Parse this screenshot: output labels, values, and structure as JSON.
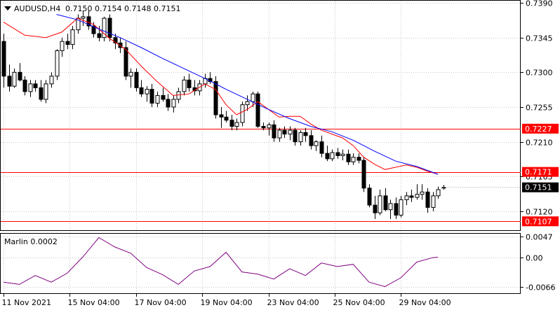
{
  "header": {
    "symbol_label": "AUDUSD,H4",
    "ohlc_label": "0.7150 0.7154 0.7148 0.7151"
  },
  "colors": {
    "background": "#ffffff",
    "candle": "#000000",
    "ma_fast": "#ff0000",
    "ma_slow": "#0000ff",
    "level": "#ff0000",
    "oscillator": "#800080",
    "tag_bg": "#ff0000",
    "price_bg": "#000000",
    "grid": "#c8c8c8"
  },
  "chart_data": [
    {
      "type": "candlestick",
      "symbol": "AUDUSD",
      "timeframe": "H4",
      "ylim": [
        0.71,
        0.739
      ],
      "y_ticks": [
        "0.7390",
        "0.7345",
        "0.7300",
        "0.7255",
        "0.7210",
        "0.7165",
        "0.7120"
      ],
      "x_ticks": [
        "11 Nov 2021",
        "15 Nov 04:00",
        "17 Nov 04:00",
        "19 Nov 04:00",
        "23 Nov 04:00",
        "25 Nov 04:00",
        "29 Nov 04:00"
      ],
      "current_price": "0.7151",
      "levels": [
        {
          "value": 0.7227,
          "label": "0.7227"
        },
        {
          "value": 0.7171,
          "label": "0.7171"
        },
        {
          "value": 0.7107,
          "label": "0.7107"
        }
      ],
      "candles": [
        [
          0.734,
          0.735,
          0.728,
          0.7295
        ],
        [
          0.7295,
          0.731,
          0.7275,
          0.7282
        ],
        [
          0.7282,
          0.7305,
          0.728,
          0.73
        ],
        [
          0.73,
          0.7312,
          0.7288,
          0.729
        ],
        [
          0.729,
          0.7295,
          0.727,
          0.7275
        ],
        [
          0.7275,
          0.729,
          0.7268,
          0.7285
        ],
        [
          0.7285,
          0.729,
          0.7275,
          0.728
        ],
        [
          0.728,
          0.729,
          0.7262,
          0.7265
        ],
        [
          0.7265,
          0.729,
          0.726,
          0.7285
        ],
        [
          0.7285,
          0.73,
          0.728,
          0.7295
        ],
        [
          0.7295,
          0.733,
          0.729,
          0.7328
        ],
        [
          0.7328,
          0.7345,
          0.732,
          0.734
        ],
        [
          0.734,
          0.735,
          0.733,
          0.7336
        ],
        [
          0.7336,
          0.736,
          0.733,
          0.7355
        ],
        [
          0.7355,
          0.7375,
          0.735,
          0.737
        ],
        [
          0.737,
          0.738,
          0.736,
          0.7372
        ],
        [
          0.7372,
          0.738,
          0.7355,
          0.736
        ],
        [
          0.736,
          0.7365,
          0.7345,
          0.735
        ],
        [
          0.735,
          0.736,
          0.734,
          0.7345
        ],
        [
          0.7345,
          0.7372,
          0.734,
          0.737
        ],
        [
          0.737,
          0.7375,
          0.734,
          0.7345
        ],
        [
          0.7345,
          0.735,
          0.733,
          0.7338
        ],
        [
          0.7338,
          0.7345,
          0.7325,
          0.7332
        ],
        [
          0.7332,
          0.734,
          0.729,
          0.7295
        ],
        [
          0.7295,
          0.7305,
          0.728,
          0.73
        ],
        [
          0.73,
          0.7305,
          0.7275,
          0.728
        ],
        [
          0.728,
          0.729,
          0.7268,
          0.7272
        ],
        [
          0.7272,
          0.7282,
          0.7262,
          0.7278
        ],
        [
          0.7278,
          0.7285,
          0.7255,
          0.726
        ],
        [
          0.726,
          0.7275,
          0.7255,
          0.727
        ],
        [
          0.727,
          0.728,
          0.7262,
          0.7265
        ],
        [
          0.7265,
          0.7272,
          0.725,
          0.7255
        ],
        [
          0.7255,
          0.727,
          0.7248,
          0.7265
        ],
        [
          0.7265,
          0.728,
          0.726,
          0.7275
        ],
        [
          0.7275,
          0.7295,
          0.727,
          0.729
        ],
        [
          0.729,
          0.7298,
          0.7275,
          0.728
        ],
        [
          0.728,
          0.729,
          0.727,
          0.7276
        ],
        [
          0.7276,
          0.729,
          0.727,
          0.7285
        ],
        [
          0.7285,
          0.7298,
          0.728,
          0.7292
        ],
        [
          0.7292,
          0.73,
          0.7285,
          0.7288
        ],
        [
          0.7288,
          0.7295,
          0.724,
          0.7245
        ],
        [
          0.7245,
          0.7255,
          0.7228,
          0.7242
        ],
        [
          0.7242,
          0.725,
          0.7235,
          0.7238
        ],
        [
          0.7238,
          0.7245,
          0.7225,
          0.723
        ],
        [
          0.723,
          0.724,
          0.7225,
          0.7235
        ],
        [
          0.7235,
          0.7262,
          0.723,
          0.7258
        ],
        [
          0.7258,
          0.727,
          0.725,
          0.7262
        ],
        [
          0.7262,
          0.7275,
          0.7255,
          0.7272
        ],
        [
          0.7272,
          0.7275,
          0.7228,
          0.723
        ],
        [
          0.723,
          0.7235,
          0.7225,
          0.7228
        ],
        [
          0.7228,
          0.7235,
          0.7218,
          0.7232
        ],
        [
          0.7232,
          0.7238,
          0.721,
          0.7215
        ],
        [
          0.7215,
          0.7228,
          0.721,
          0.7225
        ],
        [
          0.7225,
          0.723,
          0.7215,
          0.722
        ],
        [
          0.722,
          0.723,
          0.7212,
          0.7225
        ],
        [
          0.7225,
          0.7228,
          0.7205,
          0.721
        ],
        [
          0.721,
          0.7225,
          0.7205,
          0.7222
        ],
        [
          0.7222,
          0.7228,
          0.721,
          0.7218
        ],
        [
          0.7218,
          0.7225,
          0.72,
          0.7205
        ],
        [
          0.7205,
          0.7212,
          0.7198,
          0.721
        ],
        [
          0.721,
          0.7218,
          0.719,
          0.7195
        ],
        [
          0.7195,
          0.7205,
          0.7185,
          0.7188
        ],
        [
          0.7188,
          0.72,
          0.7185,
          0.7196
        ],
        [
          0.7196,
          0.7202,
          0.7188,
          0.7192
        ],
        [
          0.7192,
          0.72,
          0.7186,
          0.7194
        ],
        [
          0.7194,
          0.72,
          0.718,
          0.7184
        ],
        [
          0.7184,
          0.7195,
          0.718,
          0.719
        ],
        [
          0.719,
          0.7195,
          0.7182,
          0.7186
        ],
        [
          0.7186,
          0.719,
          0.7145,
          0.715
        ],
        [
          0.715,
          0.7155,
          0.7125,
          0.7128
        ],
        [
          0.7128,
          0.714,
          0.711,
          0.7118
        ],
        [
          0.7118,
          0.7148,
          0.7115,
          0.714
        ],
        [
          0.714,
          0.715,
          0.712,
          0.7122
        ],
        [
          0.7122,
          0.7135,
          0.711,
          0.713
        ],
        [
          0.713,
          0.7138,
          0.711,
          0.7115
        ],
        [
          0.7115,
          0.714,
          0.7112,
          0.7135
        ],
        [
          0.7135,
          0.7145,
          0.7128,
          0.714
        ],
        [
          0.714,
          0.7148,
          0.7132,
          0.7138
        ],
        [
          0.7138,
          0.7155,
          0.7135,
          0.7142
        ],
        [
          0.7142,
          0.7155,
          0.7135,
          0.7145
        ],
        [
          0.7145,
          0.715,
          0.7118,
          0.7125
        ],
        [
          0.7125,
          0.7145,
          0.712,
          0.714
        ],
        [
          0.714,
          0.7152,
          0.7136,
          0.7148
        ],
        [
          0.715,
          0.7154,
          0.7148,
          0.7151
        ]
      ],
      "ma_fast": [
        [
          0,
          0.7365
        ],
        [
          4,
          0.7348
        ],
        [
          8,
          0.7345
        ],
        [
          11,
          0.7352
        ],
        [
          14,
          0.737
        ],
        [
          17,
          0.7362
        ],
        [
          20,
          0.7344
        ],
        [
          23,
          0.733
        ],
        [
          26,
          0.7308
        ],
        [
          29,
          0.7288
        ],
        [
          32,
          0.727
        ],
        [
          35,
          0.7272
        ],
        [
          38,
          0.7285
        ],
        [
          40,
          0.7278
        ],
        [
          42,
          0.7258
        ],
        [
          44,
          0.7245
        ],
        [
          46,
          0.7252
        ],
        [
          48,
          0.7262
        ],
        [
          50,
          0.7252
        ],
        [
          52,
          0.7242
        ],
        [
          54,
          0.7243
        ],
        [
          56,
          0.7243
        ],
        [
          58,
          0.7233
        ],
        [
          60,
          0.7225
        ],
        [
          62,
          0.722
        ],
        [
          64,
          0.7215
        ],
        [
          66,
          0.7205
        ],
        [
          68,
          0.719
        ],
        [
          70,
          0.7181
        ],
        [
          72,
          0.7174
        ],
        [
          74,
          0.7177
        ],
        [
          76,
          0.718
        ],
        [
          78,
          0.7177
        ],
        [
          80,
          0.7172
        ],
        [
          82,
          0.7168
        ]
      ],
      "ma_slow": [
        [
          10,
          0.7375
        ],
        [
          14,
          0.7368
        ],
        [
          18,
          0.7356
        ],
        [
          22,
          0.7345
        ],
        [
          26,
          0.7332
        ],
        [
          30,
          0.7318
        ],
        [
          34,
          0.7305
        ],
        [
          38,
          0.7292
        ],
        [
          42,
          0.7278
        ],
        [
          46,
          0.7265
        ],
        [
          50,
          0.7252
        ],
        [
          54,
          0.724
        ],
        [
          58,
          0.723
        ],
        [
          62,
          0.7223
        ],
        [
          66,
          0.7212
        ],
        [
          70,
          0.7198
        ],
        [
          74,
          0.7185
        ],
        [
          78,
          0.7178
        ],
        [
          82,
          0.7168
        ]
      ]
    },
    {
      "type": "line",
      "title": "Marlin 0.0002",
      "ylim": [
        -0.0075,
        0.0052
      ],
      "y_ticks": [
        "0.0047",
        "0.00",
        "-0.0066"
      ],
      "x": [
        0,
        3,
        6,
        9,
        12,
        15,
        18,
        21,
        24,
        27,
        30,
        33,
        36,
        39,
        42,
        45,
        48,
        51,
        54,
        57,
        60,
        63,
        66,
        69,
        72,
        75,
        78,
        81,
        82
      ],
      "values": [
        -0.0055,
        -0.006,
        -0.004,
        -0.0055,
        -0.0035,
        0.0002,
        0.0045,
        0.0024,
        0.001,
        -0.0022,
        -0.0038,
        -0.006,
        -0.003,
        -0.002,
        0.0012,
        -0.0032,
        -0.0037,
        -0.0048,
        -0.0025,
        -0.004,
        -0.0012,
        -0.002,
        -0.0015,
        -0.0055,
        -0.0065,
        -0.0045,
        -0.001,
        0.0,
        0.0001
      ]
    }
  ]
}
